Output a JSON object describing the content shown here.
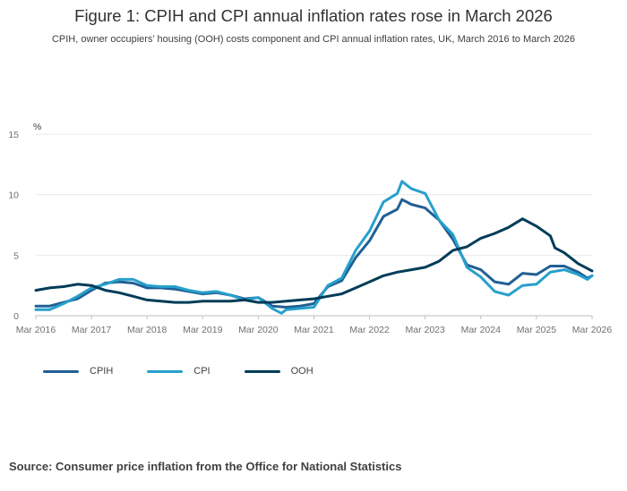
{
  "header": {
    "title": "Figure 1: CPIH and CPI annual inflation rates rose in March 2026",
    "subtitle": "CPIH, owner occupiers’ housing (OOH) costs component and CPI annual inflation rates, UK, March 2016 to March 2026"
  },
  "footer": {
    "source": "Source: Consumer price inflation from the Office for National Statistics"
  },
  "colors": {
    "cpih": "#206095",
    "cpi": "#27a0cc",
    "ooh": "#003c57",
    "grid": "#e8e8e8"
  },
  "chart_data": {
    "type": "line",
    "title": "Figure 1: CPIH and CPI annual inflation rates rose in March 2026",
    "ylabel": "%",
    "ylim": [
      0,
      15
    ],
    "yticks": [
      0,
      5,
      10,
      15
    ],
    "xlim": [
      2016.167,
      2026.167
    ],
    "xtick_labels": [
      "Mar 2016",
      "Mar 2017",
      "Mar 2018",
      "Mar 2019",
      "Mar 2020",
      "Mar 2021",
      "Mar 2022",
      "Mar 2023",
      "Mar 2024",
      "Mar 2025",
      "Mar 2026"
    ],
    "grid": true,
    "legend_position": "bottom-left",
    "series": [
      {
        "name": "CPIH",
        "color": "#206095",
        "points": [
          [
            "Mar 2016",
            0.8
          ],
          [
            "Jun 2016",
            0.8
          ],
          [
            "Sep 2016",
            1.1
          ],
          [
            "Dec 2016",
            1.4
          ],
          [
            "Mar 2017",
            2.1
          ],
          [
            "Jun 2017",
            2.7
          ],
          [
            "Sep 2017",
            2.8
          ],
          [
            "Dec 2017",
            2.7
          ],
          [
            "Mar 2018",
            2.3
          ],
          [
            "Jun 2018",
            2.3
          ],
          [
            "Sep 2018",
            2.2
          ],
          [
            "Dec 2018",
            2.0
          ],
          [
            "Mar 2019",
            1.8
          ],
          [
            "Jun 2019",
            1.9
          ],
          [
            "Sep 2019",
            1.7
          ],
          [
            "Dec 2019",
            1.4
          ],
          [
            "Mar 2020",
            1.5
          ],
          [
            "Jun 2020",
            0.8
          ],
          [
            "Sep 2020",
            0.7
          ],
          [
            "Dec 2020",
            0.8
          ],
          [
            "Mar 2021",
            1.0
          ],
          [
            "Jun 2021",
            2.4
          ],
          [
            "Sep 2021",
            2.9
          ],
          [
            "Dec 2021",
            4.8
          ],
          [
            "Mar 2022",
            6.2
          ],
          [
            "Jun 2022",
            8.2
          ],
          [
            "Sep 2022",
            8.8
          ],
          [
            "Oct 2022",
            9.6
          ],
          [
            "Dec 2022",
            9.2
          ],
          [
            "Mar 2023",
            8.9
          ],
          [
            "Jun 2023",
            7.9
          ],
          [
            "Sep 2023",
            6.3
          ],
          [
            "Dec 2023",
            4.2
          ],
          [
            "Mar 2024",
            3.8
          ],
          [
            "Jun 2024",
            2.8
          ],
          [
            "Sep 2024",
            2.6
          ],
          [
            "Dec 2024",
            3.5
          ],
          [
            "Mar 2025",
            3.4
          ],
          [
            "Jun 2025",
            4.1
          ],
          [
            "Sep 2025",
            4.1
          ],
          [
            "Dec 2025",
            3.6
          ],
          [
            "Feb 2026",
            3.1
          ],
          [
            "Mar 2026",
            3.3
          ]
        ]
      },
      {
        "name": "CPI",
        "color": "#27a0cc",
        "points": [
          [
            "Mar 2016",
            0.5
          ],
          [
            "Jun 2016",
            0.5
          ],
          [
            "Sep 2016",
            1.0
          ],
          [
            "Dec 2016",
            1.6
          ],
          [
            "Mar 2017",
            2.3
          ],
          [
            "Jun 2017",
            2.6
          ],
          [
            "Sep 2017",
            3.0
          ],
          [
            "Dec 2017",
            3.0
          ],
          [
            "Mar 2018",
            2.5
          ],
          [
            "Jun 2018",
            2.4
          ],
          [
            "Sep 2018",
            2.4
          ],
          [
            "Dec 2018",
            2.1
          ],
          [
            "Mar 2019",
            1.9
          ],
          [
            "Jun 2019",
            2.0
          ],
          [
            "Sep 2019",
            1.7
          ],
          [
            "Dec 2019",
            1.3
          ],
          [
            "Mar 2020",
            1.5
          ],
          [
            "Jun 2020",
            0.6
          ],
          [
            "Aug 2020",
            0.2
          ],
          [
            "Sep 2020",
            0.5
          ],
          [
            "Dec 2020",
            0.6
          ],
          [
            "Mar 2021",
            0.7
          ],
          [
            "Jun 2021",
            2.5
          ],
          [
            "Sep 2021",
            3.1
          ],
          [
            "Dec 2021",
            5.4
          ],
          [
            "Mar 2022",
            7.0
          ],
          [
            "Jun 2022",
            9.4
          ],
          [
            "Sep 2022",
            10.1
          ],
          [
            "Oct 2022",
            11.1
          ],
          [
            "Dec 2022",
            10.5
          ],
          [
            "Mar 2023",
            10.1
          ],
          [
            "Jun 2023",
            7.9
          ],
          [
            "Sep 2023",
            6.7
          ],
          [
            "Dec 2023",
            4.0
          ],
          [
            "Mar 2024",
            3.2
          ],
          [
            "Jun 2024",
            2.0
          ],
          [
            "Sep 2024",
            1.7
          ],
          [
            "Dec 2024",
            2.5
          ],
          [
            "Mar 2025",
            2.6
          ],
          [
            "Jun 2025",
            3.6
          ],
          [
            "Sep 2025",
            3.8
          ],
          [
            "Dec 2025",
            3.4
          ],
          [
            "Feb 2026",
            3.0
          ],
          [
            "Mar 2026",
            3.3
          ]
        ]
      },
      {
        "name": "OOH",
        "color": "#003c57",
        "points": [
          [
            "Mar 2016",
            2.1
          ],
          [
            "Jun 2016",
            2.3
          ],
          [
            "Sep 2016",
            2.4
          ],
          [
            "Dec 2016",
            2.6
          ],
          [
            "Mar 2017",
            2.5
          ],
          [
            "Jun 2017",
            2.1
          ],
          [
            "Sep 2017",
            1.9
          ],
          [
            "Dec 2017",
            1.6
          ],
          [
            "Mar 2018",
            1.3
          ],
          [
            "Jun 2018",
            1.2
          ],
          [
            "Sep 2018",
            1.1
          ],
          [
            "Dec 2018",
            1.1
          ],
          [
            "Mar 2019",
            1.2
          ],
          [
            "Jun 2019",
            1.2
          ],
          [
            "Sep 2019",
            1.2
          ],
          [
            "Dec 2019",
            1.3
          ],
          [
            "Mar 2020",
            1.1
          ],
          [
            "Jun 2020",
            1.1
          ],
          [
            "Sep 2020",
            1.2
          ],
          [
            "Dec 2020",
            1.3
          ],
          [
            "Mar 2021",
            1.4
          ],
          [
            "Jun 2021",
            1.6
          ],
          [
            "Sep 2021",
            1.8
          ],
          [
            "Dec 2021",
            2.3
          ],
          [
            "Mar 2022",
            2.8
          ],
          [
            "Jun 2022",
            3.3
          ],
          [
            "Sep 2022",
            3.6
          ],
          [
            "Dec 2022",
            3.8
          ],
          [
            "Mar 2023",
            4.0
          ],
          [
            "Jun 2023",
            4.5
          ],
          [
            "Sep 2023",
            5.4
          ],
          [
            "Dec 2023",
            5.7
          ],
          [
            "Mar 2024",
            6.4
          ],
          [
            "Jun 2024",
            6.8
          ],
          [
            "Sep 2024",
            7.3
          ],
          [
            "Dec 2024",
            8.0
          ],
          [
            "Mar 2025",
            7.4
          ],
          [
            "Jun 2025",
            6.6
          ],
          [
            "Jul 2025",
            5.6
          ],
          [
            "Sep 2025",
            5.2
          ],
          [
            "Dec 2025",
            4.3
          ],
          [
            "Mar 2026",
            3.7
          ]
        ]
      }
    ]
  }
}
